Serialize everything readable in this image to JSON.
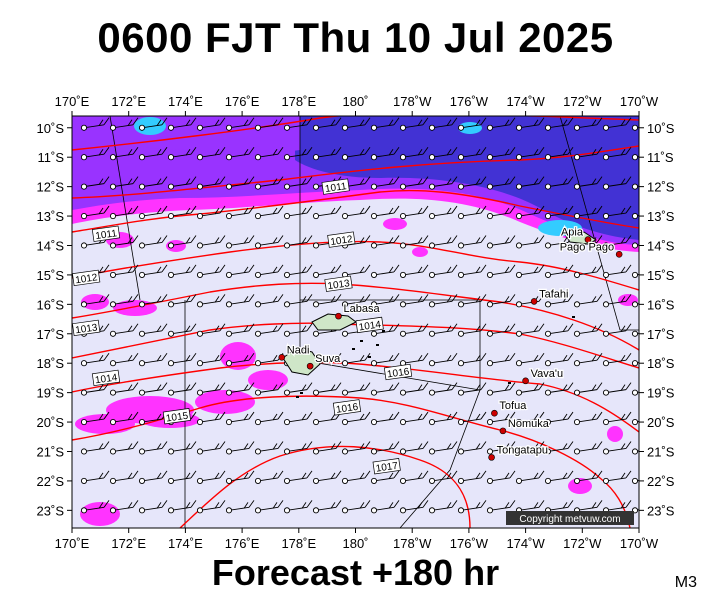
{
  "title": "0600 FJT Thu 10 Jul 2025",
  "footer": "Forecast +180 hr",
  "code": "M3",
  "copyright": "Copyright metvuw.com",
  "colors": {
    "background": "#e6e6fa",
    "precip_light": "#ff33ff",
    "precip_mid": "#9933ff",
    "precip_heavy": "#3333cc",
    "precip_extreme": "#33ccff",
    "isobar": "#ff0000",
    "border": "#000000",
    "place_dot": "#cc0000"
  },
  "lon_labels": [
    "170˚E",
    "172˚E",
    "174˚E",
    "176˚E",
    "178˚E",
    "180˚",
    "178˚W",
    "176˚W",
    "174˚W",
    "172˚W",
    "170˚W"
  ],
  "lat_labels": [
    "10˚S",
    "11˚S",
    "12˚S",
    "13˚S",
    "14˚S",
    "15˚S",
    "16˚S",
    "17˚S",
    "18˚S",
    "19˚S",
    "20˚S",
    "21˚S",
    "22˚S",
    "23˚S"
  ],
  "places": [
    {
      "name": "Apia",
      "lon": -171.8,
      "lat": -13.8
    },
    {
      "name": "Pago Pago",
      "lon": -170.7,
      "lat": -14.3
    },
    {
      "name": "Tafahi",
      "lon": -173.7,
      "lat": -15.9
    },
    {
      "name": "Labasa",
      "lon": 179.4,
      "lat": -16.4
    },
    {
      "name": "Nadi",
      "lon": 177.4,
      "lat": -17.8
    },
    {
      "name": "Suva",
      "lon": 178.4,
      "lat": -18.1
    },
    {
      "name": "Vava'u",
      "lon": -174.0,
      "lat": -18.6
    },
    {
      "name": "Tofua",
      "lon": -175.1,
      "lat": -19.7
    },
    {
      "name": "Nomuka",
      "lon": -174.8,
      "lat": -20.3
    },
    {
      "name": "Tongatapu",
      "lon": -175.2,
      "lat": -21.2
    }
  ],
  "isobars": [
    {
      "label": "1011",
      "lon": 179.3,
      "lat": -12.0
    },
    {
      "label": "1011",
      "lon": 171.2,
      "lat": -13.6
    },
    {
      "label": "1012",
      "lon": 179.5,
      "lat": -13.8
    },
    {
      "label": "1012",
      "lon": 170.5,
      "lat": -15.1
    },
    {
      "label": "1013",
      "lon": 179.4,
      "lat": -15.3
    },
    {
      "label": "1013",
      "lon": 170.5,
      "lat": -16.8
    },
    {
      "label": "1014",
      "lon": -179.5,
      "lat": -16.7
    },
    {
      "label": "1014",
      "lon": 171.2,
      "lat": -18.5
    },
    {
      "label": "1015",
      "lon": 173.7,
      "lat": -19.8
    },
    {
      "label": "1016",
      "lon": -178.5,
      "lat": -18.3
    },
    {
      "label": "1016",
      "lon": 179.7,
      "lat": -19.5
    },
    {
      "label": "1017",
      "lon": -178.9,
      "lat": -21.5
    }
  ]
}
